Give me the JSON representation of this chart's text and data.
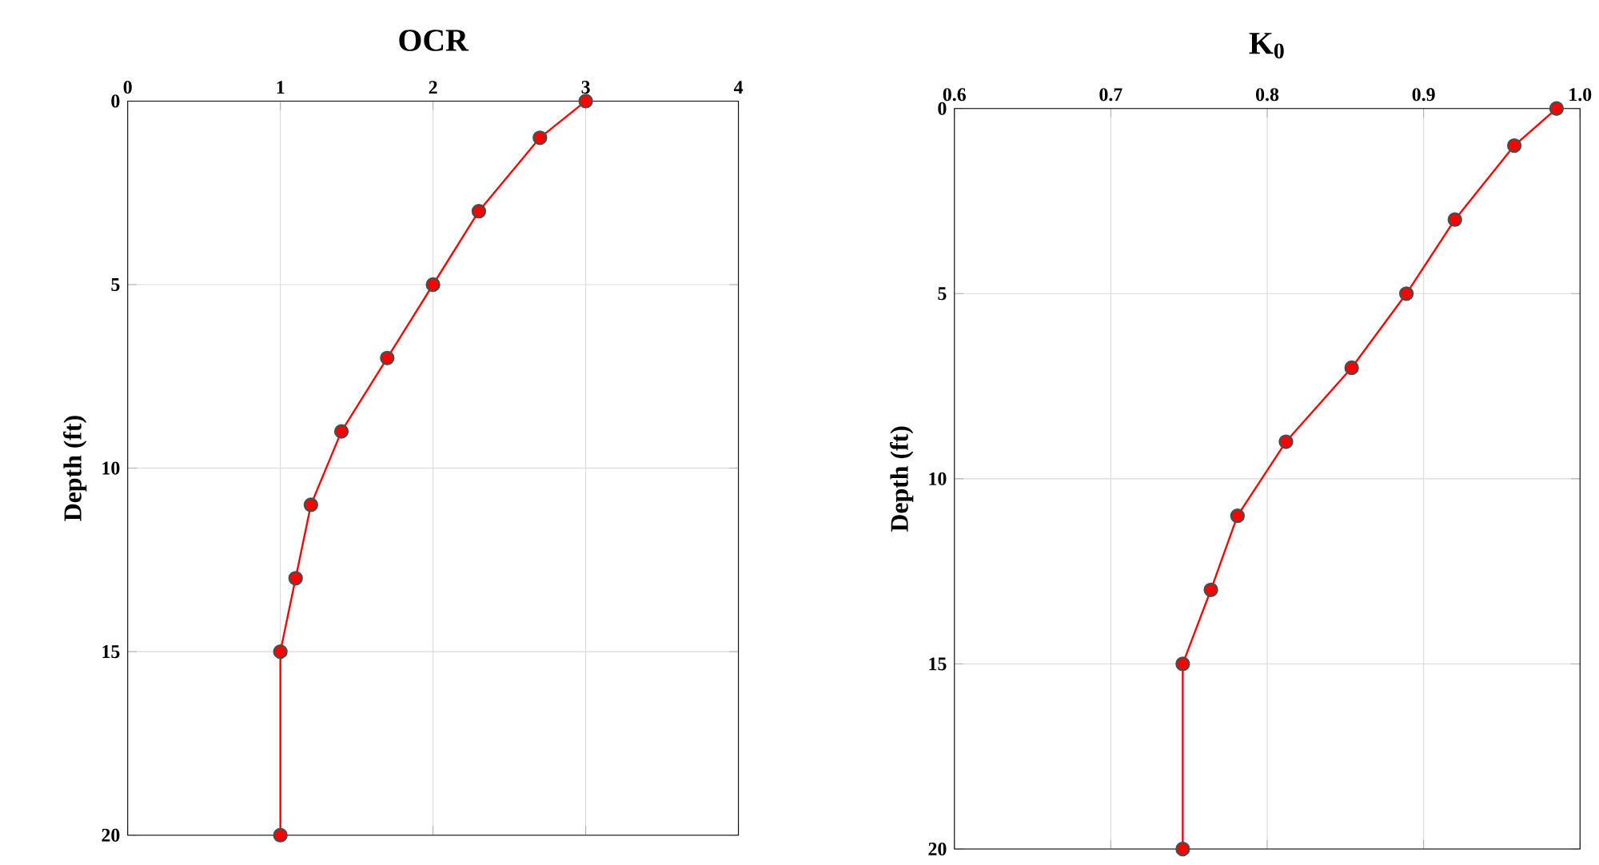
{
  "chart_data": [
    {
      "type": "line",
      "title": "OCR",
      "ylabel": "Depth (ft)",
      "xlim": [
        0,
        4
      ],
      "xticks": [
        0,
        1,
        2,
        3,
        4
      ],
      "ylim": [
        20,
        0
      ],
      "yticks": [
        0,
        5,
        10,
        15,
        20
      ],
      "grid": true,
      "marker": "circle",
      "line_style": "solid",
      "series": [
        {
          "color": "#ff0000",
          "x": [
            3.0,
            2.7,
            2.3,
            2.0,
            1.7,
            1.4,
            1.2,
            1.1,
            1.0,
            1.0
          ],
          "values": [
            0,
            1,
            3,
            5,
            7,
            9,
            11,
            13,
            15,
            20
          ]
        }
      ]
    },
    {
      "type": "line",
      "title": "K$_{0}$",
      "ylabel": "Depth (ft)",
      "xlim": [
        0.6,
        1.0
      ],
      "xticks": [
        0.6,
        0.7,
        0.8,
        0.9,
        {
          "value": 1.0,
          "label": "1.0"
        }
      ],
      "ylim": [
        20,
        0
      ],
      "yticks": [
        0,
        5,
        10,
        15,
        20
      ],
      "grid": true,
      "marker": "circle",
      "line_style": "solid",
      "series": [
        {
          "color": "#ff0000",
          "x": [
            0.985,
            0.958,
            0.92,
            0.889,
            0.854,
            0.812,
            0.781,
            0.764,
            0.746,
            0.746
          ],
          "values": [
            0,
            1,
            3,
            5,
            7,
            9,
            11,
            13,
            15,
            20
          ]
        }
      ]
    }
  ]
}
